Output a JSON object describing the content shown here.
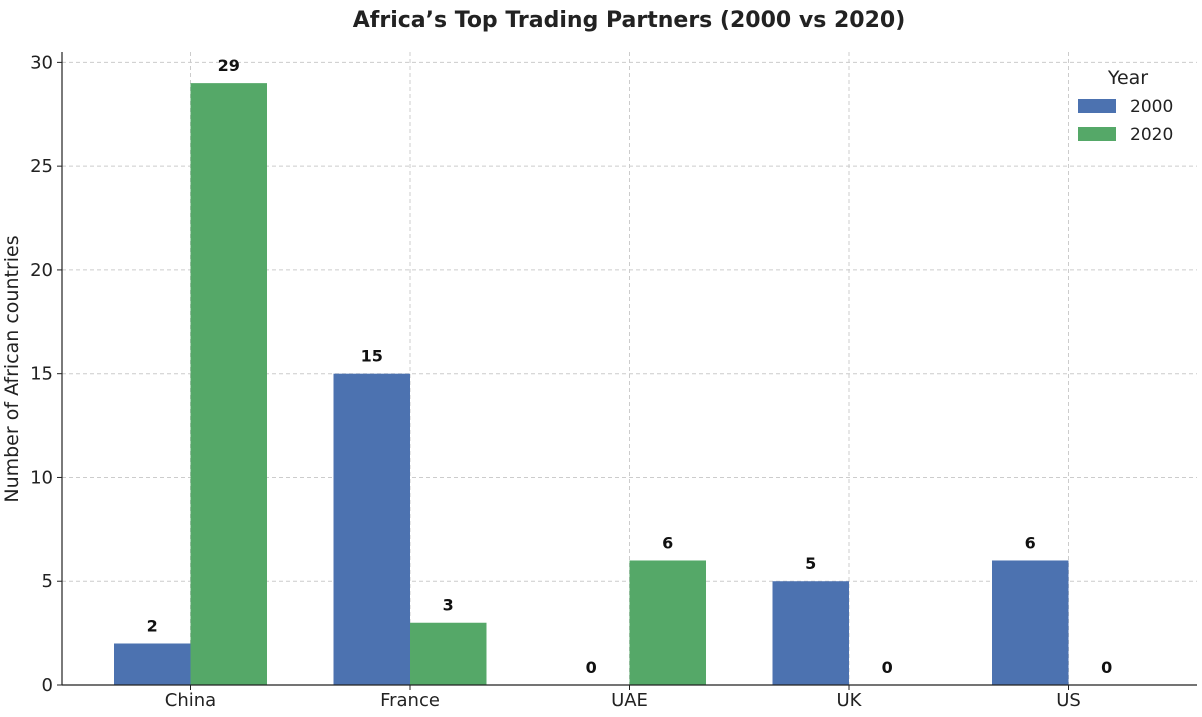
{
  "chart_data": {
    "type": "bar",
    "title": "Africa’s Top Trading Partners (2000 vs 2020)",
    "xlabel": "",
    "ylabel": "Number of African countries",
    "categories": [
      "China",
      "France",
      "UAE",
      "UK",
      "US"
    ],
    "series": [
      {
        "name": "2000",
        "color": "#4c72b0",
        "values": [
          2,
          15,
          0,
          5,
          6
        ]
      },
      {
        "name": "2020",
        "color": "#55a868",
        "values": [
          29,
          3,
          6,
          0,
          0
        ]
      }
    ],
    "ylim": [
      0,
      30.5
    ],
    "yticks": [
      0,
      5,
      10,
      15,
      20,
      25,
      30
    ],
    "grid": true,
    "legend": {
      "title": "Year",
      "position": "top-right"
    }
  }
}
